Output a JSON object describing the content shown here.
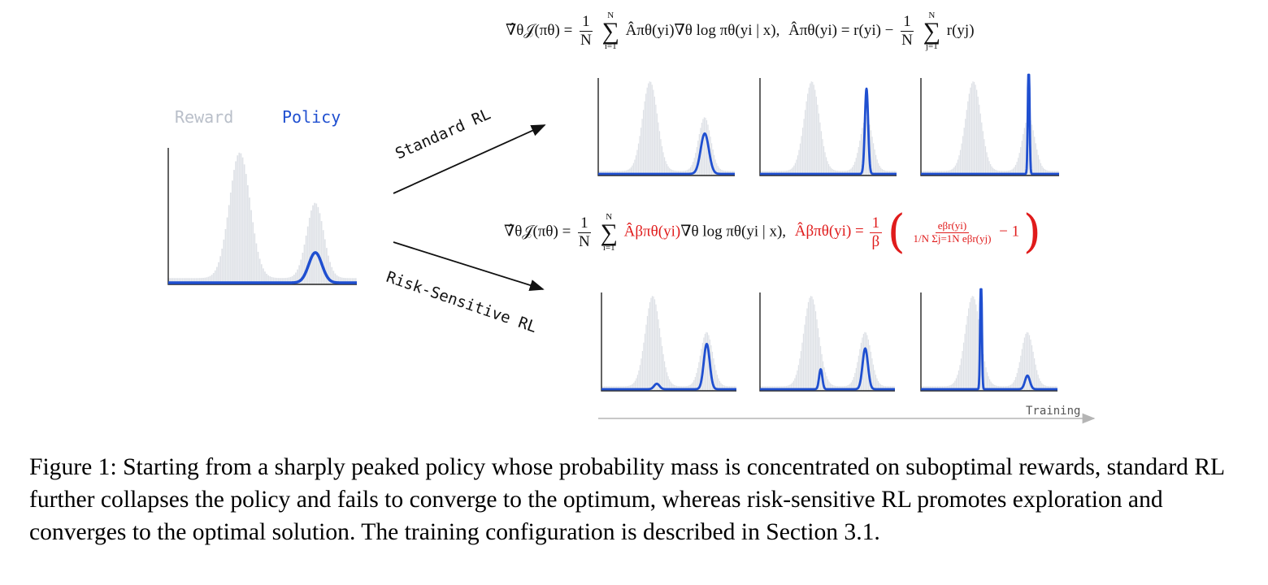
{
  "legend": {
    "reward_label": "Reward",
    "policy_label": "Policy",
    "reward_color": "#b9bfc9",
    "policy_color": "#1f4fd0"
  },
  "arrows": {
    "standard_label": "Standard RL",
    "risk_label": "Risk-Sensitive RL"
  },
  "axis": {
    "training_label": "Training"
  },
  "equations": {
    "standard": {
      "lhs": "∇̂θ𝒥(πθ) =",
      "frac_num": "1",
      "frac_den": "N",
      "sum_top": "N",
      "sum_bottom": "i=1",
      "term": "Âπθ(yi)∇θ log πθ(yi | x),",
      "adv_lhs": "Âπθ(yi) = r(yi) −",
      "frac2_num": "1",
      "frac2_den": "N",
      "sum2_top": "N",
      "sum2_bottom": "j=1",
      "adv_tail": "r(yj)"
    },
    "risk": {
      "lhs": "∇̂θ𝒥(πθ) =",
      "frac_num": "1",
      "frac_den": "N",
      "sum_top": "N",
      "sum_bottom": "i=1",
      "term_red": "Âβπθ(yi)",
      "term_black": "∇θ log πθ(yi | x),",
      "adv_lhs": "Âβπθ(yi) =",
      "beta_num": "1",
      "beta_den": "β",
      "inner_num": "eβr(yi)",
      "inner_den": "1/N Σj=1N eβr(yj)",
      "tail": "− 1",
      "red_color": "#e01b1b"
    }
  },
  "caption": "Figure 1: Starting from a sharply peaked policy whose probability mass is concentrated on suboptimal rewards, standard RL further collapses the policy and fails to converge to the optimum, whereas risk-sensitive RL promotes exploration and converges to the optimal solution. The training configuration is described in Section 3.1.",
  "chart_data": [
    {
      "type": "area",
      "panel": "initial",
      "reward": {
        "modes": [
          {
            "center": 0.38,
            "width": 0.055,
            "height": 1.0
          },
          {
            "center": 0.78,
            "width": 0.045,
            "height": 0.6
          }
        ],
        "baseline": 0.05
      },
      "policy": {
        "modes": [
          {
            "center": 0.78,
            "width": 0.035,
            "height": 0.24
          }
        ],
        "baseline": 0.0
      }
    },
    {
      "type": "area",
      "panel": "standard-step-1",
      "reward": {
        "modes": [
          {
            "center": 0.38,
            "width": 0.055,
            "height": 1.0
          },
          {
            "center": 0.78,
            "width": 0.045,
            "height": 0.6
          }
        ],
        "baseline": 0.05
      },
      "policy": {
        "modes": [
          {
            "center": 0.78,
            "width": 0.03,
            "height": 0.45
          }
        ],
        "baseline": 0.0
      }
    },
    {
      "type": "area",
      "panel": "standard-step-2",
      "reward": {
        "modes": [
          {
            "center": 0.38,
            "width": 0.055,
            "height": 1.0
          },
          {
            "center": 0.78,
            "width": 0.045,
            "height": 0.6
          }
        ],
        "baseline": 0.05
      },
      "policy": {
        "modes": [
          {
            "center": 0.78,
            "width": 0.012,
            "height": 0.95
          }
        ],
        "baseline": 0.0
      }
    },
    {
      "type": "area",
      "panel": "standard-step-3",
      "reward": {
        "modes": [
          {
            "center": 0.38,
            "width": 0.055,
            "height": 1.0
          },
          {
            "center": 0.78,
            "width": 0.045,
            "height": 0.6
          }
        ],
        "baseline": 0.05
      },
      "policy": {
        "modes": [
          {
            "center": 0.78,
            "width": 0.006,
            "height": 1.35
          }
        ],
        "baseline": 0.0
      }
    },
    {
      "type": "area",
      "panel": "risk-step-1",
      "reward": {
        "modes": [
          {
            "center": 0.38,
            "width": 0.055,
            "height": 1.0
          },
          {
            "center": 0.78,
            "width": 0.045,
            "height": 0.6
          }
        ],
        "baseline": 0.05
      },
      "policy": {
        "modes": [
          {
            "center": 0.78,
            "width": 0.022,
            "height": 0.5
          },
          {
            "center": 0.41,
            "width": 0.02,
            "height": 0.06
          }
        ],
        "baseline": 0.0
      }
    },
    {
      "type": "area",
      "panel": "risk-step-2",
      "reward": {
        "modes": [
          {
            "center": 0.38,
            "width": 0.055,
            "height": 1.0
          },
          {
            "center": 0.78,
            "width": 0.045,
            "height": 0.6
          }
        ],
        "baseline": 0.05
      },
      "policy": {
        "modes": [
          {
            "center": 0.78,
            "width": 0.02,
            "height": 0.45
          },
          {
            "center": 0.45,
            "width": 0.012,
            "height": 0.22
          }
        ],
        "baseline": 0.0
      }
    },
    {
      "type": "area",
      "panel": "risk-step-3",
      "reward": {
        "modes": [
          {
            "center": 0.38,
            "width": 0.055,
            "height": 1.0
          },
          {
            "center": 0.78,
            "width": 0.045,
            "height": 0.6
          }
        ],
        "baseline": 0.05
      },
      "policy": {
        "modes": [
          {
            "center": 0.78,
            "width": 0.018,
            "height": 0.15
          },
          {
            "center": 0.44,
            "width": 0.006,
            "height": 1.35
          }
        ],
        "baseline": 0.0
      }
    }
  ]
}
